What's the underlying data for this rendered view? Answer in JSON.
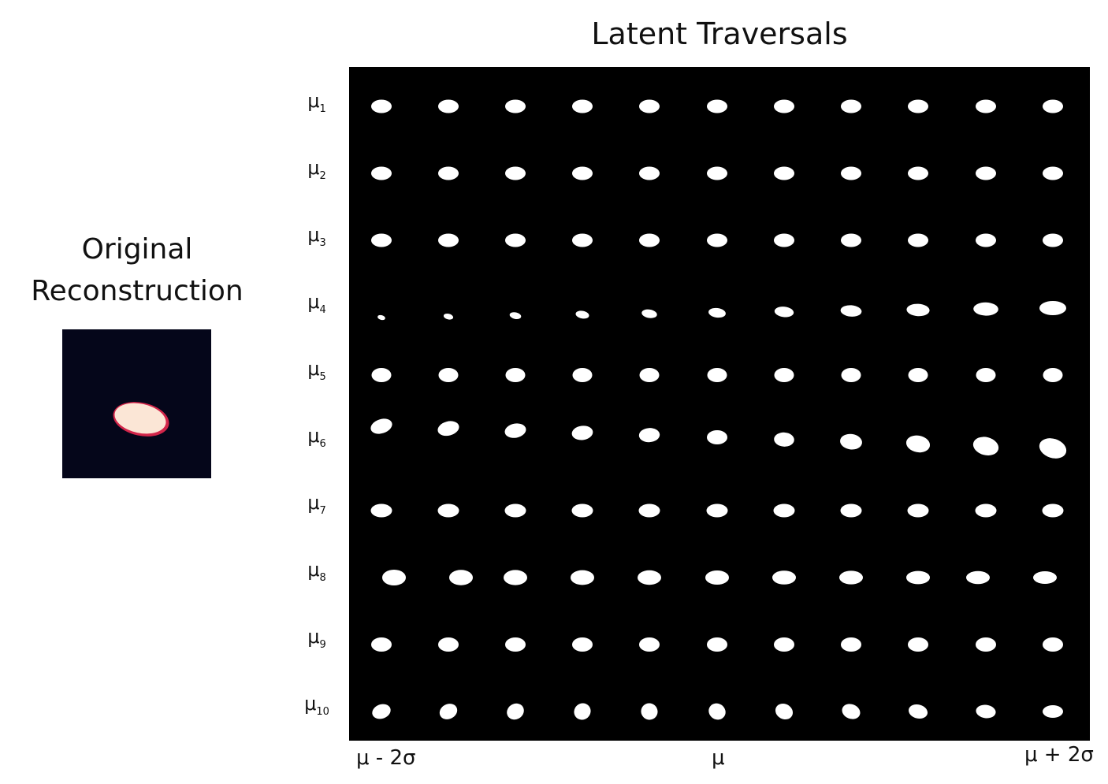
{
  "title": "Latent Traversals",
  "original": {
    "title_line1": "Original",
    "title_line2": "Reconstruction",
    "background_color": "#05061a",
    "blob_color": "#fbe6d6",
    "edge_color": "#d2254a"
  },
  "rows": [
    {
      "base": "μ",
      "index": "1"
    },
    {
      "base": "μ",
      "index": "2"
    },
    {
      "base": "μ",
      "index": "3"
    },
    {
      "base": "μ",
      "index": "4"
    },
    {
      "base": "μ",
      "index": "5"
    },
    {
      "base": "μ",
      "index": "6"
    },
    {
      "base": "μ",
      "index": "7"
    },
    {
      "base": "μ",
      "index": "8"
    },
    {
      "base": "μ",
      "index": "9"
    },
    {
      "base": "μ",
      "index": "10"
    }
  ],
  "columns_count": 11,
  "axis": {
    "left": "μ - 2σ",
    "middle": "μ",
    "right": "μ + 2σ"
  },
  "grid_background": "#000000",
  "blob_fill": "#ffffff"
}
